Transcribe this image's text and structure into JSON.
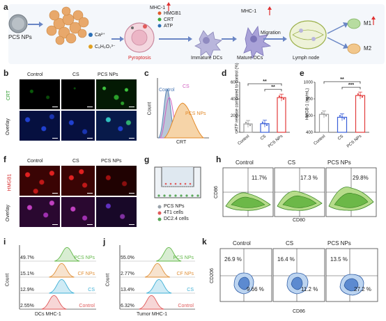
{
  "panel_letters": [
    "a",
    "b",
    "c",
    "d",
    "e",
    "f",
    "g",
    "h",
    "i",
    "j",
    "k"
  ],
  "a": {
    "pcs_nps": "PCS NPs",
    "ca": "Ca²⁺",
    "citrate": "C₆H₅O₇³⁻",
    "mhc1": "MHC-1",
    "hmgb1": "HMGB1",
    "crt": "CRT",
    "atp": "ATP",
    "pyroptosis": "Pyroptosis",
    "immature_dcs": "Immature DCs",
    "mature_dcs": "Mature DCs",
    "migration": "Migration",
    "lymph_node": "Lymph node",
    "m1": "M1",
    "m2": "M2"
  },
  "b": {
    "cols": [
      "Control",
      "CS",
      "PCS NPs"
    ],
    "row1": "CRT",
    "row2": "Overlay"
  },
  "c": {
    "labels": [
      "Control",
      "CS",
      "PCS NPs"
    ],
    "xlabel": "CRT",
    "ylabel": "Count"
  },
  "f": {
    "cols": [
      "Control",
      "CS",
      "PCS NPs"
    ],
    "row1": "HMGB1",
    "row2": "Overlay"
  },
  "g": {
    "legend": [
      "PCS NPs",
      "4T1 cells",
      "DC2.4 cells"
    ]
  },
  "h": {
    "cols": [
      "Control",
      "CS",
      "PCS NPs"
    ],
    "values": [
      "11.7%",
      "17.3 %",
      "29.8%"
    ],
    "xlabel": "CD80",
    "ylabel": "CD86"
  },
  "i": {
    "xlabel": "DCs MHC-1",
    "ylabel": "Count"
  },
  "j": {
    "xlabel": "Tumor MHC-1",
    "ylabel": "Count"
  },
  "k": {
    "cols": [
      "Control",
      "CS",
      "PCS NPs"
    ],
    "upper": [
      "26.9 %",
      "16.4 %",
      "13.5 %"
    ],
    "lower": [
      "9.66 %",
      "11.2 %",
      "27.2 %"
    ],
    "xlabel": "CD86",
    "ylabel": "CD206"
  },
  "chart_data": [
    {
      "type": "bar",
      "panel": "d",
      "categories": [
        "Control",
        "CS",
        "PCS NPs"
      ],
      "values": [
        100,
        103,
        415
      ],
      "ylabel": "ATP release compared to control (%)",
      "ylim": [
        0,
        600
      ],
      "yticks": [
        0,
        200,
        400,
        600
      ],
      "significance": [
        "**",
        "**"
      ],
      "colors": [
        "#9a9a9a",
        "#3a5fd8",
        "#e23b3b"
      ]
    },
    {
      "type": "bar",
      "panel": "e",
      "categories": [
        "Control",
        "CS",
        "PCS NPs"
      ],
      "values": [
        615,
        580,
        840
      ],
      "ylabel": "HMGB-1 (ng/mL)",
      "ylim": [
        400,
        1000
      ],
      "yticks": [
        400,
        600,
        800,
        1000
      ],
      "significance": [
        "**",
        "***"
      ],
      "colors": [
        "#9a9a9a",
        "#3a5fd8",
        "#e23b3b"
      ]
    },
    {
      "type": "histogram",
      "panel": "i",
      "series": [
        {
          "name": "PCS NPs",
          "percent": "49.7%",
          "color": "#63b84a"
        },
        {
          "name": "CF NPs",
          "percent": "15.1%",
          "color": "#e0913a"
        },
        {
          "name": "CS",
          "percent": "12.9%",
          "color": "#3fb0d6"
        },
        {
          "name": "Control",
          "percent": "2.55%",
          "color": "#e05a5a"
        }
      ]
    },
    {
      "type": "histogram",
      "panel": "j",
      "series": [
        {
          "name": "PCS NPs",
          "percent": "55.0%",
          "color": "#63b84a"
        },
        {
          "name": "CF NPs",
          "percent": "2.77%",
          "color": "#e0913a"
        },
        {
          "name": "CS",
          "percent": "13.4%",
          "color": "#3fb0d6"
        },
        {
          "name": "Control",
          "percent": "6.32%",
          "color": "#e05a5a"
        }
      ]
    }
  ]
}
